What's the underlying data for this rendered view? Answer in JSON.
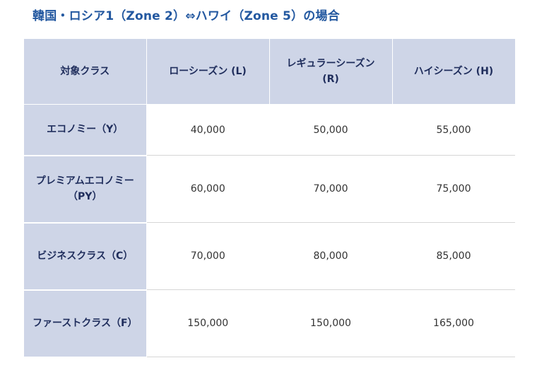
{
  "heading": "韓国・ロシア1（Zone 2）⇔ハワイ（Zone 5）の場合",
  "table": {
    "columns": [
      "対象クラス",
      "ローシーズン (L)",
      "レギュラーシーズン (R)",
      "ハイシーズン (H)"
    ],
    "rows": [
      {
        "class": "エコノミー（Y）",
        "values": [
          "40,000",
          "50,000",
          "55,000"
        ]
      },
      {
        "class": "プレミアムエコノミー（PY）",
        "values": [
          "60,000",
          "70,000",
          "75,000"
        ]
      },
      {
        "class": "ビジネスクラス（C）",
        "values": [
          "70,000",
          "80,000",
          "85,000"
        ]
      },
      {
        "class": "ファーストクラス（F）",
        "values": [
          "150,000",
          "150,000",
          "165,000"
        ]
      }
    ]
  },
  "colors": {
    "heading": "#2358a0",
    "header_bg": "#ced5e7",
    "header_text": "#1f2d5c"
  }
}
